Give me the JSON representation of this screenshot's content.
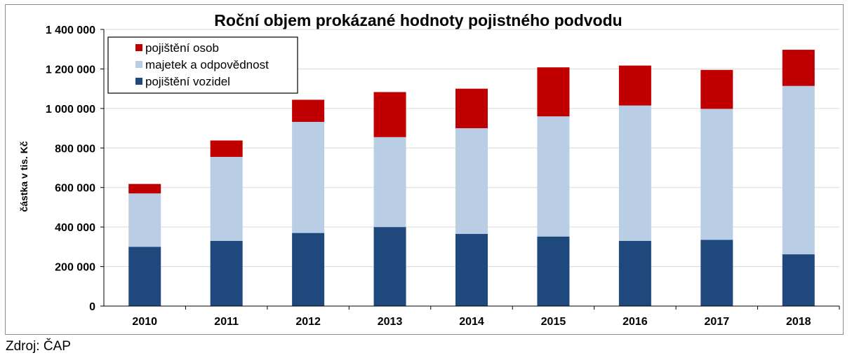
{
  "chart_data": {
    "type": "bar",
    "stacked": true,
    "title": "Roční objem prokázané hodnoty pojistného podvodu",
    "xlabel": "",
    "ylabel": "částka v tis. Kč",
    "ylim": [
      0,
      1400000
    ],
    "yticks": [
      0,
      200000,
      400000,
      600000,
      800000,
      1000000,
      1200000,
      1400000
    ],
    "ytick_labels": [
      "0",
      "200 000",
      "400 000",
      "600 000",
      "800 000",
      "1 000 000",
      "1 200 000",
      "1 400 000"
    ],
    "grid": true,
    "legend_position": "top-left",
    "categories": [
      "2010",
      "2011",
      "2012",
      "2013",
      "2014",
      "2015",
      "2016",
      "2017",
      "2018"
    ],
    "series": [
      {
        "name": "pojištění vozidel",
        "color": "#1f497d",
        "values": [
          300000,
          330000,
          370000,
          400000,
          365000,
          352000,
          330000,
          335000,
          262000
        ]
      },
      {
        "name": "majetek a odpovědnost",
        "color": "#b9cde5",
        "values": [
          270000,
          425000,
          562000,
          455000,
          535000,
          608000,
          685000,
          663000,
          852000
        ]
      },
      {
        "name": "pojištění osob",
        "color": "#c00000",
        "values": [
          48000,
          83000,
          112000,
          228000,
          200000,
          248000,
          202000,
          197000,
          183000
        ]
      }
    ],
    "legend_order": [
      "pojištění osob",
      "majetek a odpovědnost",
      "pojištění vozidel"
    ]
  },
  "source": "Zdroj: ČAP"
}
